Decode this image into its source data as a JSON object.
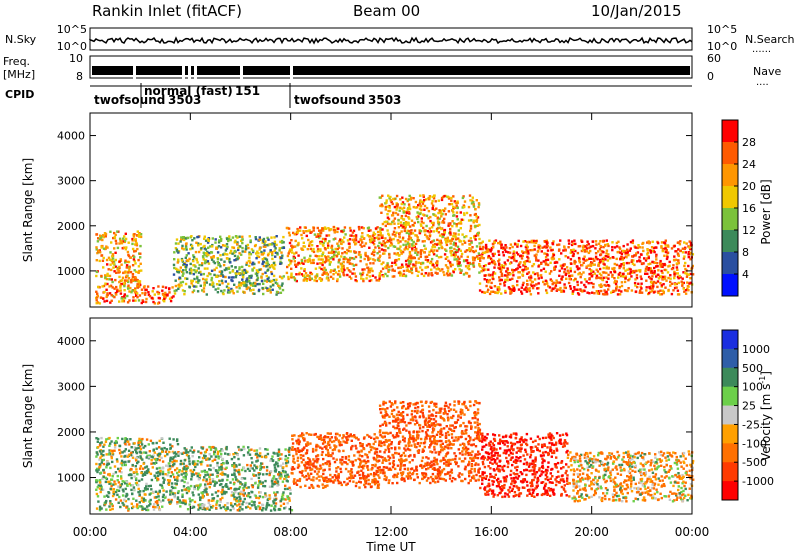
{
  "header": {
    "station": "Rankin Inlet (fitACF)",
    "beam": "Beam 00",
    "date": "10/Jan/2015"
  },
  "top_panels": {
    "nsky_label": "N.Sky",
    "nsky_ticks": [
      "10^5",
      "10^0"
    ],
    "nsearch_label": "N.Search",
    "nsearch_ticks": [
      "10^5",
      "10^0"
    ],
    "freq_label": "Freq.",
    "freq_unit": "[MHz]",
    "freq_ticks": [
      "10",
      "8"
    ],
    "nave_label": "Nave",
    "nave_ticks": [
      "60",
      "0"
    ],
    "cpid_label": "CPID",
    "cpid_segments": [
      {
        "name": "twofsound",
        "id": "3503"
      },
      {
        "name": "normal (fast)",
        "id": "151"
      },
      {
        "name": "twofsound",
        "id": "3503"
      }
    ]
  },
  "axes": {
    "ylabel_range": "Slant Range [km]",
    "xlabel": "Time UT",
    "x_tick_labels": [
      "00:00",
      "04:00",
      "08:00",
      "12:00",
      "16:00",
      "20:00",
      "00:00"
    ],
    "y_tick_labels": [
      "1000",
      "2000",
      "3000",
      "4000"
    ]
  },
  "colorbars": {
    "power": {
      "title": "Power [dB]",
      "labels": [
        "28",
        "24",
        "20",
        "16",
        "12",
        "8",
        "4"
      ],
      "colors": [
        "#ff0000",
        "#ff5a00",
        "#ff9600",
        "#f0c800",
        "#7bc23a",
        "#3c8a5a",
        "#2a4fa0",
        "#0010ff"
      ]
    },
    "velocity": {
      "title": "Velocity [m s",
      "title_sup": "-1",
      "title_end": "]",
      "labels": [
        "1000",
        "500",
        "100",
        "25",
        "-25",
        "-100",
        "-500",
        "-1000"
      ],
      "colors": [
        "#1a2ee0",
        "#2f5ea8",
        "#3c8a5a",
        "#6cd04a",
        "#c8c8c8",
        "#ffa000",
        "#ff7000",
        "#ff3a00",
        "#ff0000"
      ]
    }
  },
  "chart_data": {
    "type": "heatmap",
    "x_range": [
      "00:00",
      "24:00"
    ],
    "y_range_km": [
      200,
      4500
    ],
    "panels": [
      {
        "quantity": "Power [dB]",
        "regions": [
          {
            "t_start": 0.2,
            "t_end": 2.0,
            "r_min": 300,
            "r_max": 1900,
            "value": 24
          },
          {
            "t_start": 2.0,
            "t_end": 3.3,
            "r_min": 300,
            "r_max": 700,
            "value": 28
          },
          {
            "t_start": 3.3,
            "t_end": 7.7,
            "r_min": 500,
            "r_max": 1800,
            "value": 16
          },
          {
            "t_start": 7.8,
            "t_end": 11.5,
            "r_min": 800,
            "r_max": 2000,
            "value": 24
          },
          {
            "t_start": 11.5,
            "t_end": 15.5,
            "r_min": 900,
            "r_max": 2700,
            "value": 24
          },
          {
            "t_start": 15.5,
            "t_end": 24.0,
            "r_min": 500,
            "r_max": 1700,
            "value": 28
          }
        ]
      },
      {
        "quantity": "Velocity [m s-1]",
        "regions": [
          {
            "t_start": 0.2,
            "t_end": 3.5,
            "r_min": 300,
            "r_max": 1900,
            "value": 100
          },
          {
            "t_start": 3.5,
            "t_end": 8.0,
            "r_min": 300,
            "r_max": 1700,
            "value": 100
          },
          {
            "t_start": 8.0,
            "t_end": 11.5,
            "r_min": 800,
            "r_max": 2000,
            "value": -500
          },
          {
            "t_start": 11.5,
            "t_end": 15.5,
            "r_min": 900,
            "r_max": 2700,
            "value": -500
          },
          {
            "t_start": 15.5,
            "t_end": 19.0,
            "r_min": 600,
            "r_max": 2000,
            "value": -1000
          },
          {
            "t_start": 19.0,
            "t_end": 24.0,
            "r_min": 500,
            "r_max": 1600,
            "value": -100
          }
        ]
      }
    ]
  }
}
